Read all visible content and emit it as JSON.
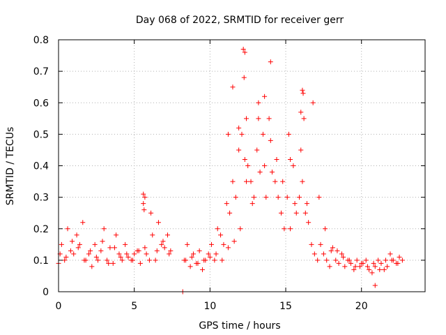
{
  "chart_data": {
    "type": "scatter",
    "title": "Day 068 of 2022, SRMTID for receiver gerr",
    "xlabel": "GPS time / hours",
    "ylabel": "SRMTID / TECUs",
    "xlim": [
      0,
      24.2
    ],
    "ylim": [
      0,
      0.8
    ],
    "xticks": [
      0,
      5,
      10,
      15,
      20
    ],
    "xtick_labels": [
      "0",
      "5",
      "10",
      "15",
      "20"
    ],
    "yticks": [
      0,
      0.1,
      0.2,
      0.3,
      0.4,
      0.5,
      0.6,
      0.7,
      0.8
    ],
    "ytick_labels": [
      "0",
      "0.1",
      "0.2",
      "0.3",
      "0.4",
      "0.5",
      "0.6",
      "0.7",
      "0.8"
    ],
    "grid": true,
    "marker": "+",
    "series_color": "#ff0000",
    "series": [
      {
        "name": "SRMTID",
        "x": [
          0.0,
          0.2,
          0.4,
          0.6,
          0.8,
          1.0,
          1.2,
          1.4,
          1.6,
          1.8,
          2.0,
          2.2,
          2.4,
          2.6,
          2.8,
          3.0,
          3.2,
          3.4,
          3.6,
          3.8,
          4.0,
          4.2,
          4.4,
          4.6,
          4.8,
          5.0,
          5.2,
          5.4,
          5.6,
          5.8,
          6.0,
          6.2,
          6.4,
          6.6,
          6.8,
          7.0,
          7.2,
          7.4,
          8.3,
          8.5,
          8.7,
          8.9,
          9.1,
          9.3,
          9.5,
          9.7,
          9.9,
          10.1,
          10.3,
          10.5,
          10.7,
          10.9,
          11.1,
          11.3,
          11.5,
          11.7,
          11.9,
          12.1,
          12.3,
          12.5,
          12.7,
          12.9,
          13.1,
          13.3,
          13.5,
          13.7,
          13.9,
          14.1,
          14.3,
          14.5,
          14.7,
          14.9,
          15.1,
          15.3,
          15.5,
          15.7,
          15.9,
          16.1,
          16.3,
          16.5,
          16.7,
          16.9,
          17.1,
          17.3,
          17.5,
          17.7,
          17.9,
          18.1,
          18.3,
          18.5,
          18.7,
          18.9,
          19.1,
          19.3,
          19.5,
          19.7,
          19.9,
          20.1,
          20.3,
          20.5,
          20.7,
          20.9,
          21.1,
          21.3,
          21.5,
          21.7,
          21.9,
          22.1,
          22.3,
          22.5,
          22.7,
          0.1,
          0.5,
          0.9,
          1.3,
          1.7,
          2.1,
          2.5,
          2.9,
          3.3,
          3.7,
          4.1,
          4.5,
          4.9,
          5.3,
          5.7,
          6.1,
          6.5,
          6.9,
          7.3,
          8.4,
          8.8,
          9.2,
          9.6,
          10.0,
          10.4,
          10.8,
          11.2,
          11.6,
          12.0,
          12.4,
          12.8,
          13.2,
          13.6,
          14.0,
          14.4,
          14.8,
          15.2,
          15.6,
          16.0,
          16.4,
          16.8,
          17.2,
          17.6,
          18.0,
          18.4,
          18.8,
          19.2,
          19.6,
          20.0,
          20.4,
          20.8,
          21.2,
          21.6,
          22.0,
          22.4,
          5.6,
          5.7,
          5.65,
          12.2,
          12.3,
          12.25,
          14.0,
          16.1,
          16.15,
          16.2,
          11.5,
          11.2,
          13.2,
          13.6,
          15.3,
          16.0,
          11.9,
          12.4,
          20.9,
          8.2
        ],
        "y": [
          0.09,
          0.15,
          0.1,
          0.2,
          0.13,
          0.12,
          0.18,
          0.15,
          0.22,
          0.1,
          0.12,
          0.08,
          0.15,
          0.1,
          0.13,
          0.2,
          0.1,
          0.14,
          0.09,
          0.18,
          0.12,
          0.1,
          0.15,
          0.11,
          0.1,
          0.12,
          0.13,
          0.09,
          0.28,
          0.12,
          0.1,
          0.18,
          0.1,
          0.22,
          0.15,
          0.14,
          0.18,
          0.13,
          0.1,
          0.15,
          0.08,
          0.12,
          0.09,
          0.13,
          0.07,
          0.1,
          0.12,
          0.15,
          0.1,
          0.2,
          0.18,
          0.15,
          0.28,
          0.25,
          0.35,
          0.3,
          0.45,
          0.5,
          0.42,
          0.4,
          0.35,
          0.3,
          0.45,
          0.38,
          0.5,
          0.3,
          0.55,
          0.38,
          0.35,
          0.3,
          0.25,
          0.2,
          0.3,
          0.2,
          0.4,
          0.25,
          0.3,
          0.35,
          0.25,
          0.22,
          0.15,
          0.12,
          0.1,
          0.15,
          0.12,
          0.1,
          0.08,
          0.14,
          0.1,
          0.09,
          0.12,
          0.08,
          0.1,
          0.09,
          0.07,
          0.1,
          0.08,
          0.09,
          0.1,
          0.07,
          0.06,
          0.08,
          0.1,
          0.09,
          0.07,
          0.08,
          0.12,
          0.1,
          0.09,
          0.11,
          0.1,
          0.12,
          0.11,
          0.16,
          0.14,
          0.1,
          0.13,
          0.11,
          0.16,
          0.09,
          0.14,
          0.11,
          0.12,
          0.1,
          0.13,
          0.14,
          0.25,
          0.13,
          0.16,
          0.12,
          0.1,
          0.11,
          0.09,
          0.1,
          0.11,
          0.12,
          0.1,
          0.14,
          0.16,
          0.2,
          0.35,
          0.28,
          0.55,
          0.4,
          0.48,
          0.42,
          0.35,
          0.5,
          0.28,
          0.45,
          0.28,
          0.6,
          0.3,
          0.2,
          0.13,
          0.13,
          0.11,
          0.1,
          0.08,
          0.09,
          0.08,
          0.09,
          0.07,
          0.1,
          0.1,
          0.09,
          0.31,
          0.3,
          0.26,
          0.77,
          0.76,
          0.68,
          0.73,
          0.64,
          0.63,
          0.55,
          0.65,
          0.5,
          0.6,
          0.62,
          0.42,
          0.57,
          0.52,
          0.55,
          0.02,
          0.0
        ]
      }
    ]
  }
}
